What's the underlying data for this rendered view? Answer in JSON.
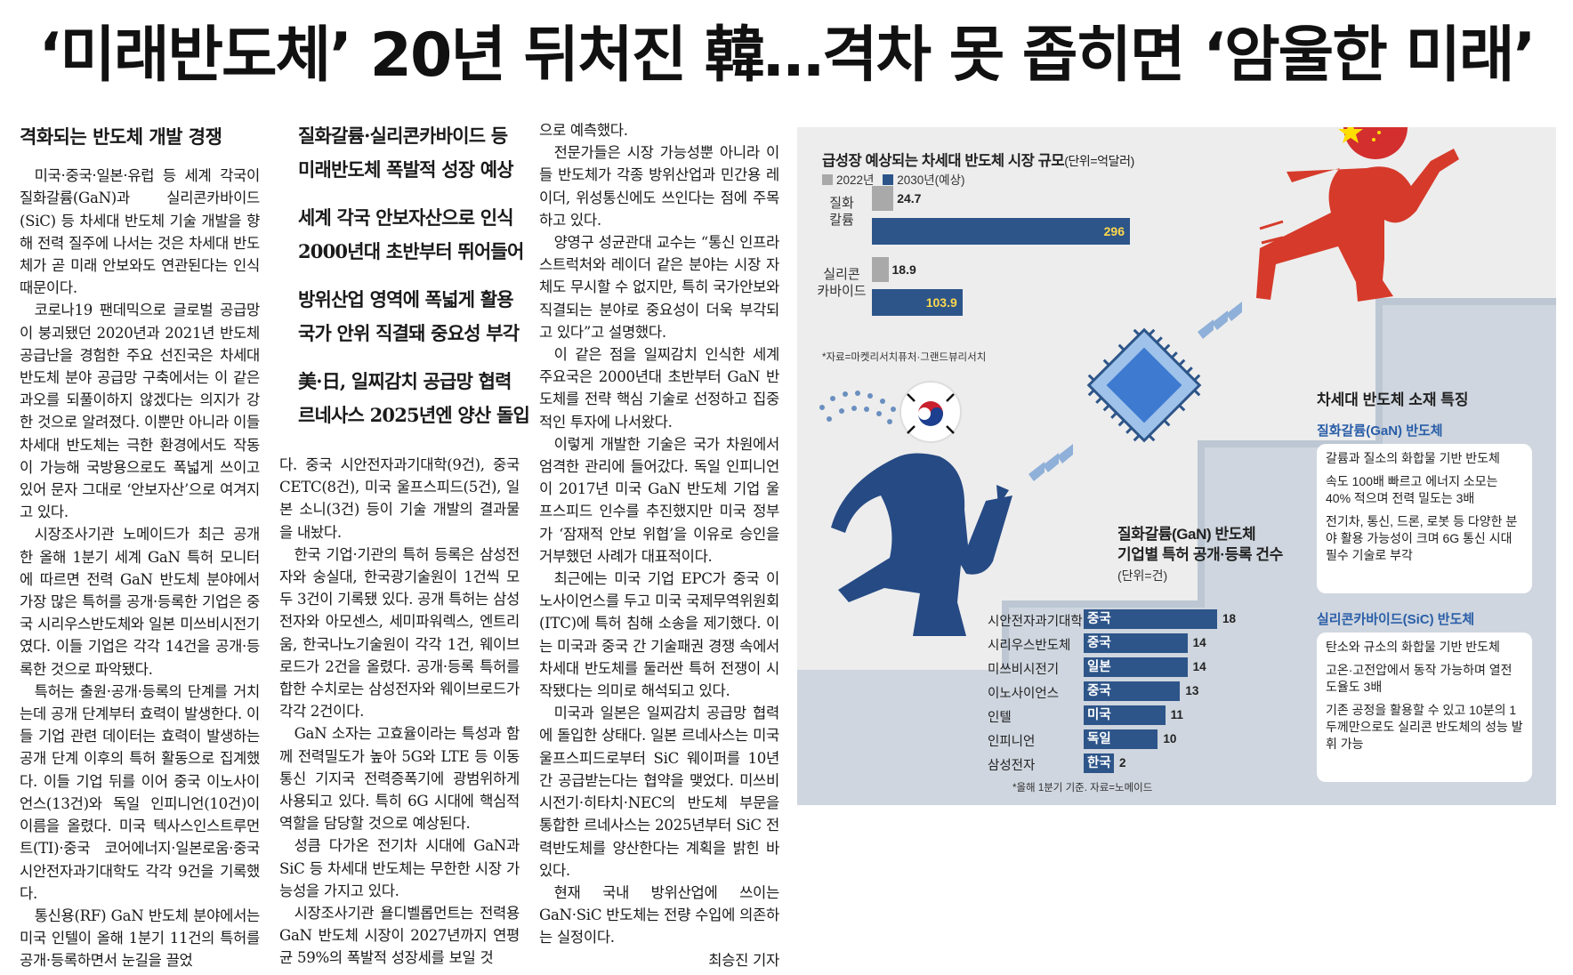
{
  "headline": "‘미래반도체’ 20년 뒤처진 韓…격차 못 좁히면 ‘암울한 미래’",
  "article": {
    "section_title": "격화되는 반도체 개발 경쟁",
    "col1": [
      "미국·중국·일본·유럽 등 세계 각국이 질화갈륨(GaN)과 실리콘카바이드(SiC) 등 차세대 반도체 기술 개발을 향해 전력 질주에 나서는 것은 차세대 반도체가 곧 미래 안보와도 연관된다는 인식 때문이다.",
      "코로나19 팬데믹으로 글로벌 공급망이 붕괴됐던 2020년과 2021년 반도체 공급난을 경험한 주요 선진국은 차세대 반도체 분야 공급망 구축에서는 이 같은 과오를 되풀이하지 않겠다는 의지가 강한 것으로 알려졌다. 이뿐만 아니라 이들 차세대 반도체는 극한 환경에서도 작동이 가능해 국방용으로도 폭넓게 쓰이고 있어 문자 그대로 ‘안보자산’으로 여겨지고 있다.",
      "시장조사기관 노메이드가 최근 공개한 올해 1분기 세계 GaN 특허 모니터에 따르면 전력 GaN 반도체 분야에서 가장 많은 특허를 공개·등록한 기업은 중국 시리우스반도체와 일본 미쓰비시전기였다. 이들 기업은 각각 14건을 공개·등록한 것으로 파악됐다.",
      "특허는 출원·공개·등록의 단계를 거치는데 공개 단계부터 효력이 발생한다. 이들 기업 관련 데이터는 효력이 발생하는 공개 단계 이후의 특허 활동으로 집계했다. 이들 기업 뒤를 이어 중국 이노사이언스(13건)와 독일 인피니언(10건)이 이름을 올렸다. 미국 텍사스인스트루먼트(TI)·중국 코어에너지·일본로움·중국 시안전자과기대학도 각각 9건을 기록했다.",
      "통신용(RF) GaN 반도체 분야에서는 미국 인텔이 올해 1분기 11건의 특허를 공개·등록하면서 눈길을 끌었"
    ],
    "subheads": [
      [
        "질화갈륨·실리콘카바이드 등",
        "미래반도체 폭발적 성장 예상"
      ],
      [
        "세계 각국 안보자산으로 인식",
        "2000년대 초반부터 뛰어들어"
      ],
      [
        "방위산업 영역에 폭넓게 활용",
        "국가 안위 직결돼 중요성 부각"
      ],
      [
        "美·日, 일찌감치 공급망 협력",
        "르네사스 2025년엔 양산 돌입"
      ]
    ],
    "col2": [
      "다. 중국 시안전자과기대학(9건), 중국 CETC(8건), 미국 울프스피드(5건), 일본 소니(3건) 등이 기술 개발의 결과물을 내놨다.",
      "한국 기업·기관의 특허 등록은 삼성전자와 숭실대, 한국광기술원이 1건씩 모두 3건이 기록됐 있다. 공개 특허는 삼성전자와 아모센스, 세미파워렉스, 엔트리움, 한국나노기술원이 각각 1건, 웨이브로드가 2건을 올렸다. 공개·등록 특허를 합한 수치로는 삼성전자와 웨이브로드가 각각 2건이다.",
      "GaN 소자는 고효율이라는 특성과 함께 전력밀도가 높아 5G와 LTE 등 이동통신 기지국 전력증폭기에 광범위하게 사용되고 있다. 특히 6G 시대에 핵심적 역할을 담당할 것으로 예상된다.",
      "성큼 다가온 전기차 시대에 GaN과 SiC 등 차세대 반도체는 무한한 시장 가능성을 가지고 있다.",
      "시장조사기관 욜디벨롭먼트는 전력용 GaN 반도체 시장이 2027년까지 연평균 59%의 폭발적 성장세를 보일 것"
    ],
    "col3": [
      "으로 예측했다.",
      "전문가들은 시장 가능성뿐 아니라 이들 반도체가 각종 방위산업과 민간용 레이더, 위성통신에도 쓰인다는 점에 주목하고 있다.",
      "양영구 성균관대 교수는 “통신 인프라스트럭처와 레이더 같은 분야는 시장 자체도 무시할 수 없지만, 특히 국가안보와 직결되는 분야로 중요성이 더욱 부각되고 있다”고 설명했다.",
      "이 같은 점을 일찌감치 인식한 세계 주요국은 2000년대 초반부터 GaN 반도체를 전략 핵심 기술로 선정하고 집중적인 투자에 나서왔다.",
      "이렇게 개발한 기술은 국가 차원에서 엄격한 관리에 들어갔다. 독일 인피니언이 2017년 미국 GaN 반도체 기업 울프스피드 인수를 추진했지만 미국 정부가 ‘잠재적 안보 위협’을 이유로 승인을 거부했던 사례가 대표적이다.",
      "최근에는 미국 기업 EPC가 중국 이노사이언스를 두고 미국 국제무역위원회(ITC)에 특허 침해 소송을 제기했다. 이는 미국과 중국 간 기술패권 경쟁 속에서 차세대 반도체를 둘러싼 특허 전쟁이 시작됐다는 의미로 해석되고 있다.",
      "미국과 일본은 일찌감치 공급망 협력에 돌입한 상태다. 일본 르네사스는 미국 울프스피드로부터 SiC 웨이퍼를 10년간 공급받는다는 협약을 맺었다. 미쓰비시전기·히타치·NEC의 반도체 부문을 통합한 르네사스는 2025년부터 SiC 전력반도체를 양산한다는 계획을 밝힌 바 있다.",
      "현재 국내 방위산업에 쓰이는 GaN·SiC 반도체는 전량 수입에 의존하는 실정이다."
    ],
    "byline": "최승진 기자"
  },
  "graphic": {
    "colors": {
      "bar_2022": "#a9a9a9",
      "bar_2030": "#2d5589",
      "accent_blue": "#2a5ea8"
    },
    "market_source": "*자료=마켓리서치퓨처·그랜드뷰리서치",
    "patent_title": [
      "질화갈륨(GaN) 반도체",
      "기업별 특허 공개·등록 건수"
    ],
    "patent_unit": "(단위=건)",
    "patent_source": "*올해 1분기 기준. 자료=노메이드",
    "features_title": "차세대 반도체 소재 특징",
    "features": [
      {
        "title": "질화갈륨(GaN) 반도체",
        "items": [
          "갈륨과 질소의 화합물 기반 반도체",
          "속도 100배 빠르고 에너지 소모는 40% 적으며 전력 밀도는 3배",
          "전기차, 통신, 드론, 로봇 등 다양한 분야 활용 가능성이 크며 6G 통신 시대 필수 기술로 부각"
        ]
      },
      {
        "title": "실리콘카바이드(SiC) 반도체",
        "items": [
          "탄소와 규소의 화합물 기반 반도체",
          "고온·고전압에서 동작 가능하며 열전도율도 3배",
          "기존 공정을 활용할 수 있고 10분의 1 두께만으로도 실리콘 반도체의 성능 발휘 가능"
        ]
      }
    ],
    "icons": [
      "china-flag-icon",
      "korea-flag-icon",
      "chip-icon",
      "runner-icon",
      "arrow-chevrons-icon"
    ]
  },
  "chart_data": [
    {
      "type": "bar",
      "orientation": "horizontal",
      "title": "급성장 예상되는 차세대 반도체 시장 규모",
      "unit": "(단위=억달러)",
      "categories": [
        "질화\n칼륨",
        "실리콘\n카바이드"
      ],
      "series": [
        {
          "name": "2022년",
          "values": [
            24.7,
            18.9
          ]
        },
        {
          "name": "2030년(예상)",
          "values": [
            296,
            103.9
          ]
        }
      ],
      "value_labels": [
        [
          "24.7",
          "296"
        ],
        [
          "18.9",
          "103.9"
        ]
      ],
      "xlim": [
        0,
        296
      ]
    },
    {
      "type": "bar",
      "orientation": "horizontal",
      "title": "질화갈륨(GaN) 반도체 기업별 특허 공개·등록 건수",
      "unit": "(단위=건)",
      "categories": [
        "시안전자과기대학",
        "시리우스반도체",
        "미쓰비시전기",
        "이노사이언스",
        "인텔",
        "인피니언",
        "삼성전자"
      ],
      "countries": [
        "중국",
        "중국",
        "일본",
        "중국",
        "미국",
        "독일",
        "한국"
      ],
      "values": [
        18,
        14,
        14,
        13,
        11,
        10,
        2
      ],
      "xlim": [
        0,
        18
      ]
    }
  ]
}
